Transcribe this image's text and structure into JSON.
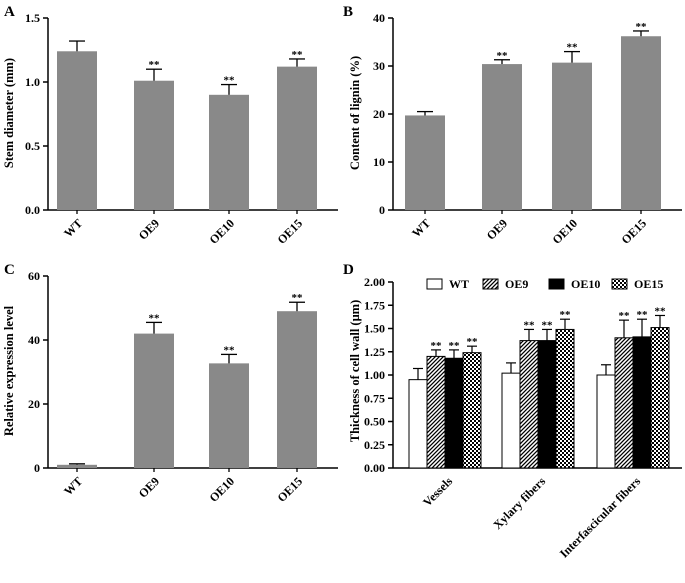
{
  "chart_data": [
    {
      "panel": "A",
      "type": "bar",
      "categories": [
        "WT",
        "OE9",
        "OE10",
        "OE15"
      ],
      "values": [
        1.24,
        1.01,
        0.9,
        1.12
      ],
      "errors": [
        0.08,
        0.09,
        0.08,
        0.06
      ],
      "significance": [
        "",
        "**",
        "**",
        "**"
      ],
      "ylabel": "Stem diameter (mm)",
      "ylim": [
        0,
        1.5
      ],
      "yticks": [
        "0.0",
        "0.5",
        "1.0",
        "1.5"
      ],
      "ytick_values": [
        0,
        0.5,
        1.0,
        1.5
      ],
      "bar_color": "#898989"
    },
    {
      "panel": "B",
      "type": "bar",
      "categories": [
        "WT",
        "OE9",
        "OE10",
        "OE15"
      ],
      "values": [
        19.7,
        30.4,
        30.7,
        36.2
      ],
      "errors": [
        0.8,
        0.9,
        2.3,
        1.1
      ],
      "significance": [
        "",
        "**",
        "**",
        "**"
      ],
      "ylabel": "Content of lignin (%)",
      "ylim": [
        0,
        40
      ],
      "yticks": [
        "0",
        "10",
        "20",
        "30",
        "40"
      ],
      "ytick_values": [
        0,
        10,
        20,
        30,
        40
      ],
      "bar_color": "#898989"
    },
    {
      "panel": "C",
      "type": "bar",
      "categories": [
        "WT",
        "OE9",
        "OE10",
        "OE15"
      ],
      "values": [
        1.0,
        42.0,
        32.7,
        49.0
      ],
      "errors": [
        0.3,
        3.5,
        2.8,
        2.8
      ],
      "significance": [
        "",
        "**",
        "**",
        "**"
      ],
      "ylabel": "Relative expression level",
      "ylim": [
        0,
        60
      ],
      "yticks": [
        "0",
        "20",
        "40",
        "60"
      ],
      "ytick_values": [
        0,
        20,
        40,
        60
      ],
      "bar_color": "#898989"
    },
    {
      "panel": "D",
      "type": "bar",
      "categories": [
        "Vessels",
        "Xylary fibers",
        "Interfascicular fibers"
      ],
      "series": [
        {
          "name": "WT",
          "values": [
            0.95,
            1.02,
            1.0
          ],
          "errors": [
            0.12,
            0.11,
            0.11
          ],
          "significance": [
            "",
            "",
            ""
          ],
          "pattern": "white"
        },
        {
          "name": "OE9",
          "values": [
            1.2,
            1.37,
            1.4
          ],
          "errors": [
            0.07,
            0.12,
            0.19
          ],
          "significance": [
            "**",
            "**",
            "**"
          ],
          "pattern": "hatch"
        },
        {
          "name": "OE10",
          "values": [
            1.18,
            1.37,
            1.41
          ],
          "errors": [
            0.09,
            0.12,
            0.19
          ],
          "significance": [
            "**",
            "**",
            "**"
          ],
          "pattern": "black"
        },
        {
          "name": "OE15",
          "values": [
            1.24,
            1.49,
            1.51
          ],
          "errors": [
            0.07,
            0.11,
            0.13
          ],
          "significance": [
            "**",
            "**",
            "**"
          ],
          "pattern": "check"
        }
      ],
      "ylabel": "Thickness of cell wall (μm)",
      "ylim": [
        0,
        2.0
      ],
      "yticks": [
        "0.00",
        "0.25",
        "0.50",
        "0.75",
        "1.00",
        "1.25",
        "1.50",
        "1.75",
        "2.00"
      ],
      "ytick_values": [
        0,
        0.25,
        0.5,
        0.75,
        1.0,
        1.25,
        1.5,
        1.75,
        2.0
      ],
      "legend_position": "top"
    }
  ]
}
